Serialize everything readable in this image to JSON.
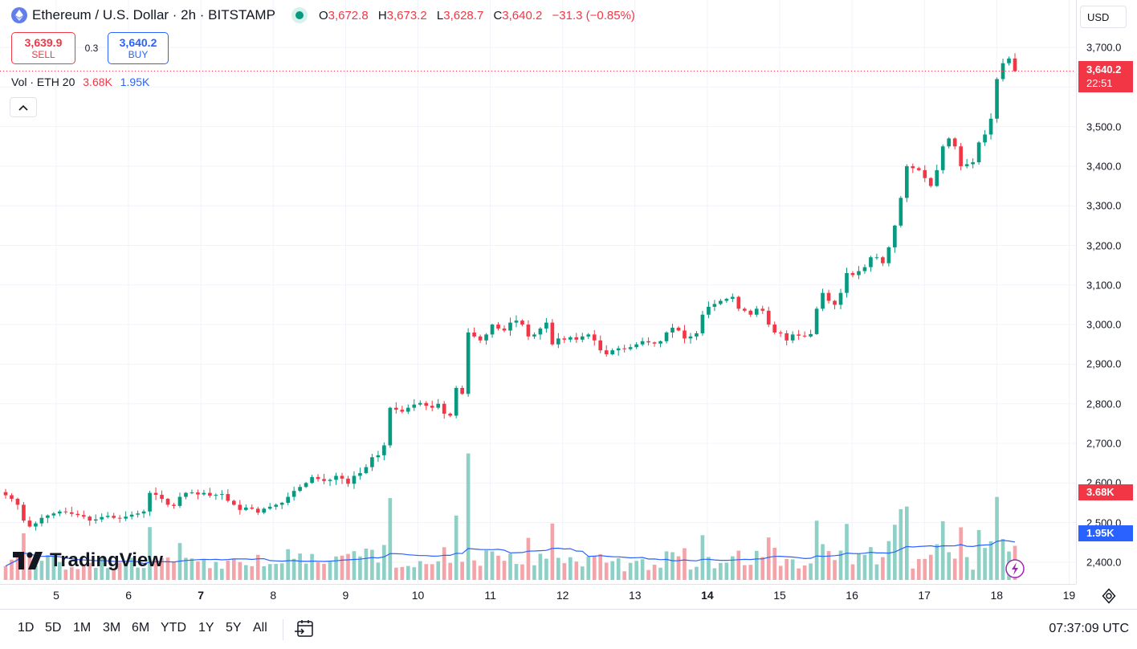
{
  "legend": {
    "symbol_title": "Ethereum / U.S. Dollar · 2h · BITSTAMP",
    "ohlc": {
      "o_label": "O",
      "o": "3,672.8",
      "h_label": "H",
      "h": "3,673.2",
      "l_label": "L",
      "l": "3,628.7",
      "c_label": "C",
      "c": "3,640.2",
      "change": "−31.3 (−0.85%)"
    }
  },
  "trade": {
    "sell_price": "3,639.9",
    "sell_label": "SELL",
    "spread": "0.3",
    "buy_price": "3,640.2",
    "buy_label": "BUY"
  },
  "volume_legend": {
    "name": "Vol · ETH",
    "length": "20",
    "vol": "3.68K",
    "ma": "1.95K"
  },
  "watermark": "TradingView",
  "price_scale": {
    "currency": "USD",
    "ticks": [
      "3,700.0",
      "3,600.0",
      "3,500.0",
      "3,400.0",
      "3,300.0",
      "3,200.0",
      "3,100.0",
      "3,000.0",
      "2,900.0",
      "2,800.0",
      "2,700.0",
      "2,600.0",
      "2,500.0",
      "2,400.0"
    ],
    "last_price": "3,640.2",
    "countdown": "22:51",
    "vol_label": "3.68K",
    "ma_label": "1.95K"
  },
  "time_scale": {
    "ticks": [
      {
        "t": "5",
        "bold": false
      },
      {
        "t": "6",
        "bold": false
      },
      {
        "t": "7",
        "bold": true
      },
      {
        "t": "8",
        "bold": false
      },
      {
        "t": "9",
        "bold": false
      },
      {
        "t": "10",
        "bold": false
      },
      {
        "t": "11",
        "bold": false
      },
      {
        "t": "12",
        "bold": false
      },
      {
        "t": "13",
        "bold": false
      },
      {
        "t": "14",
        "bold": true
      },
      {
        "t": "15",
        "bold": false
      },
      {
        "t": "16",
        "bold": false
      },
      {
        "t": "17",
        "bold": false
      },
      {
        "t": "18",
        "bold": false
      },
      {
        "t": "19",
        "bold": false
      }
    ]
  },
  "toolbar": {
    "ranges": [
      "1D",
      "5D",
      "1M",
      "3M",
      "6M",
      "YTD",
      "1Y",
      "5Y",
      "All"
    ],
    "clock": "07:37:09 UTC"
  },
  "colors": {
    "up": "#089981",
    "down": "#f23645",
    "vol_up": "#8fd0c6",
    "vol_down": "#f4a4a8",
    "ma": "#2962ff",
    "grid": "#f0f3fa"
  },
  "chart_data": {
    "type": "candlestick",
    "price_range": [
      2360,
      3720
    ],
    "candles_close": [
      2569,
      2560,
      2545,
      2505,
      2490,
      2498,
      2512,
      2518,
      2523,
      2528,
      2526,
      2522,
      2519,
      2515,
      2505,
      2508,
      2514,
      2517,
      2512,
      2510,
      2515,
      2520,
      2523,
      2528,
      2575,
      2570,
      2560,
      2545,
      2542,
      2565,
      2575,
      2576,
      2571,
      2575,
      2568,
      2570,
      2572,
      2555,
      2545,
      2532,
      2538,
      2535,
      2525,
      2535,
      2540,
      2545,
      2550,
      2565,
      2580,
      2590,
      2600,
      2615,
      2610,
      2605,
      2608,
      2618,
      2611,
      2598,
      2618,
      2625,
      2640,
      2665,
      2670,
      2695,
      2790,
      2785,
      2780,
      2790,
      2798,
      2802,
      2795,
      2790,
      2800,
      2775,
      2770,
      2840,
      2825,
      2980,
      2970,
      2960,
      2975,
      3000,
      2990,
      2985,
      3005,
      3010,
      3000,
      2970,
      2975,
      2990,
      3005,
      2950,
      2965,
      2962,
      2968,
      2962,
      2970,
      2975,
      2960,
      2935,
      2925,
      2935,
      2940,
      2938,
      2943,
      2950,
      2958,
      2955,
      2952,
      2958,
      2980,
      2992,
      2985,
      2965,
      2970,
      2978,
      3025,
      3045,
      3052,
      3060,
      3065,
      3070,
      3040,
      3035,
      3025,
      3040,
      3035,
      3000,
      2980,
      2978,
      2960,
      2975,
      2972,
      2970,
      2976,
      3040,
      3080,
      3060,
      3050,
      3080,
      3130,
      3125,
      3135,
      3145,
      3170,
      3170,
      3155,
      3195,
      3250,
      3320,
      3400,
      3395,
      3390,
      3370,
      3350,
      3390,
      3450,
      3470,
      3450,
      3400,
      3405,
      3410,
      3460,
      3480,
      3520,
      3620,
      3660,
      3672,
      3640
    ],
    "volume_units": "K",
    "volume_ma_last": 1.95,
    "volume_last": 3.68
  }
}
